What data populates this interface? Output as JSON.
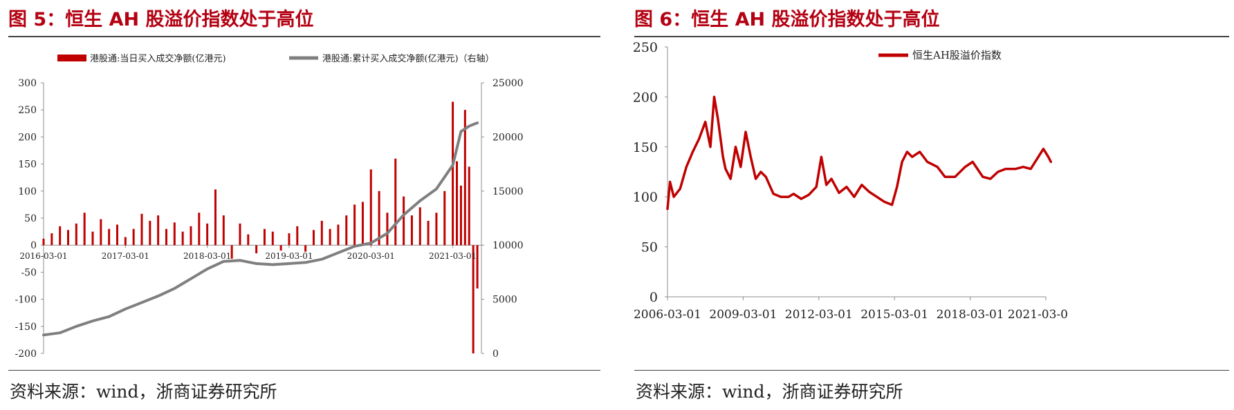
{
  "left": {
    "title": "图 5：恒生 AH 股溢价指数处于高位",
    "source": "资料来源：wind，浙商证券研究所"
  },
  "right": {
    "title": "图 6：恒生 AH 股溢价指数处于高位",
    "source": "资料来源：wind，浙商证券研究所"
  },
  "colors": {
    "title": "#b40012",
    "bars": "#c00000",
    "cumulative_line": "#7f7f7f",
    "ah_line": "#c00000"
  },
  "chart_data": [
    {
      "type": "bar",
      "secondary_type": "line",
      "title": "",
      "x_ticks": [
        "2016-03-01",
        "2017-03-01",
        "2018-03-01",
        "2019-03-01",
        "2020-03-01",
        "2021-03-01"
      ],
      "ylim": [
        -200,
        300
      ],
      "y_ticks": [
        -200,
        -150,
        -100,
        -50,
        0,
        50,
        100,
        150,
        200,
        250,
        300
      ],
      "y2lim": [
        0,
        25000
      ],
      "y2_ticks": [
        0,
        5000,
        10000,
        15000,
        20000,
        25000
      ],
      "legend": "top",
      "grid": false,
      "series": [
        {
          "name": "港股通:当日买入成交净额(亿港元)",
          "axis": "left",
          "type": "bar",
          "x": [
            2016.0,
            2016.1,
            2016.2,
            2016.3,
            2016.4,
            2016.5,
            2016.6,
            2016.7,
            2016.8,
            2016.9,
            2017.0,
            2017.1,
            2017.2,
            2017.3,
            2017.4,
            2017.5,
            2017.6,
            2017.7,
            2017.8,
            2017.9,
            2018.0,
            2018.1,
            2018.2,
            2018.3,
            2018.4,
            2018.5,
            2018.6,
            2018.7,
            2018.8,
            2018.9,
            2019.0,
            2019.1,
            2019.2,
            2019.3,
            2019.4,
            2019.5,
            2019.6,
            2019.7,
            2019.8,
            2019.9,
            2020.0,
            2020.1,
            2020.2,
            2020.3,
            2020.4,
            2020.5,
            2020.6,
            2020.7,
            2020.8,
            2020.9,
            2021.0,
            2021.05,
            2021.1,
            2021.15,
            2021.2,
            2021.25,
            2021.3
          ],
          "values": [
            12,
            22,
            35,
            28,
            40,
            60,
            25,
            48,
            30,
            38,
            15,
            30,
            58,
            45,
            55,
            30,
            42,
            25,
            35,
            60,
            40,
            103,
            55,
            -25,
            40,
            20,
            -15,
            30,
            25,
            -10,
            22,
            35,
            -12,
            28,
            45,
            30,
            38,
            55,
            75,
            80,
            140,
            100,
            60,
            160,
            90,
            55,
            70,
            45,
            60,
            100,
            265,
            155,
            110,
            250,
            145,
            -200,
            -80
          ]
        },
        {
          "name": "港股通:累计买入成交净额(亿港元)（右轴）",
          "axis": "right",
          "type": "line",
          "x": [
            2016.0,
            2016.2,
            2016.4,
            2016.6,
            2016.8,
            2017.0,
            2017.2,
            2017.4,
            2017.6,
            2017.8,
            2018.0,
            2018.2,
            2018.4,
            2018.6,
            2018.8,
            2019.0,
            2019.2,
            2019.4,
            2019.6,
            2019.8,
            2020.0,
            2020.2,
            2020.4,
            2020.6,
            2020.8,
            2021.0,
            2021.1,
            2021.2,
            2021.3
          ],
          "values": [
            1700,
            1900,
            2500,
            3000,
            3400,
            4100,
            4700,
            5300,
            6000,
            6900,
            7800,
            8500,
            8600,
            8300,
            8200,
            8300,
            8400,
            8700,
            9300,
            9900,
            10200,
            11100,
            12800,
            14100,
            15200,
            17400,
            20500,
            21000,
            21300
          ]
        }
      ]
    },
    {
      "type": "line",
      "title": "",
      "x_ticks": [
        "2006-03-01",
        "2009-03-01",
        "2012-03-01",
        "2015-03-01",
        "2018-03-01",
        "2021-03-0"
      ],
      "ylim": [
        0,
        250
      ],
      "y_ticks": [
        0,
        50,
        100,
        150,
        200,
        250
      ],
      "legend": "top",
      "grid": false,
      "series": [
        {
          "name": "恒生AH股溢价指数",
          "x": [
            2006.0,
            2006.1,
            2006.25,
            2006.5,
            2006.75,
            2007.0,
            2007.25,
            2007.5,
            2007.7,
            2007.85,
            2008.0,
            2008.2,
            2008.3,
            2008.5,
            2008.7,
            2008.9,
            2009.1,
            2009.3,
            2009.5,
            2009.7,
            2009.9,
            2010.2,
            2010.5,
            2010.8,
            2011.0,
            2011.3,
            2011.6,
            2011.9,
            2012.1,
            2012.3,
            2012.5,
            2012.8,
            2013.1,
            2013.4,
            2013.7,
            2014.0,
            2014.3,
            2014.6,
            2014.9,
            2015.1,
            2015.3,
            2015.5,
            2015.7,
            2016.0,
            2016.3,
            2016.7,
            2017.0,
            2017.4,
            2017.8,
            2018.1,
            2018.5,
            2018.8,
            2019.1,
            2019.4,
            2019.8,
            2020.1,
            2020.4,
            2020.7,
            2020.9,
            2021.1,
            2021.2
          ],
          "values": [
            88,
            115,
            100,
            108,
            130,
            145,
            158,
            175,
            150,
            200,
            178,
            140,
            128,
            118,
            150,
            130,
            165,
            140,
            118,
            125,
            120,
            103,
            100,
            100,
            103,
            98,
            102,
            110,
            140,
            112,
            118,
            104,
            110,
            100,
            112,
            105,
            100,
            95,
            92,
            110,
            135,
            145,
            140,
            145,
            135,
            130,
            120,
            120,
            130,
            135,
            120,
            118,
            125,
            128,
            128,
            130,
            128,
            140,
            148,
            140,
            135
          ]
        }
      ]
    }
  ]
}
